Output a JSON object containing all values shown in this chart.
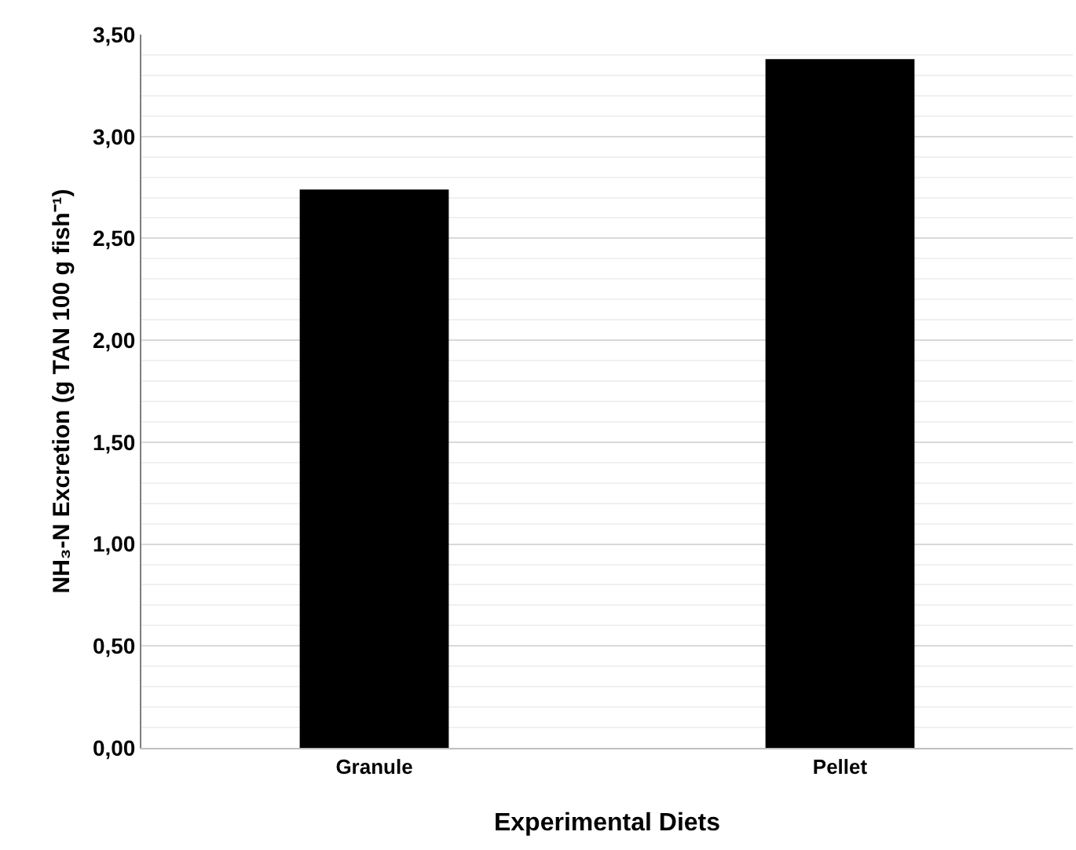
{
  "chart_data": {
    "type": "bar",
    "xlabel": "Experimental Diets",
    "ylabel": "NH₃-N Excretion (g TAN 100 g fish⁻¹)",
    "categories": [
      "Granule",
      "Pellet"
    ],
    "values": [
      2.74,
      3.38
    ],
    "color": "#000000",
    "ylim": [
      0,
      3.5
    ],
    "yticks": [
      {
        "value": 0,
        "label": "0,00"
      },
      {
        "value": 0.5,
        "label": "0,50"
      },
      {
        "value": 1,
        "label": "1,00"
      },
      {
        "value": 1.5,
        "label": "1,50"
      },
      {
        "value": 2,
        "label": "2,00"
      },
      {
        "value": 2.5,
        "label": "2,50"
      },
      {
        "value": 3,
        "label": "3,00"
      },
      {
        "value": 3.5,
        "label": "3,50"
      }
    ],
    "grid": true
  }
}
